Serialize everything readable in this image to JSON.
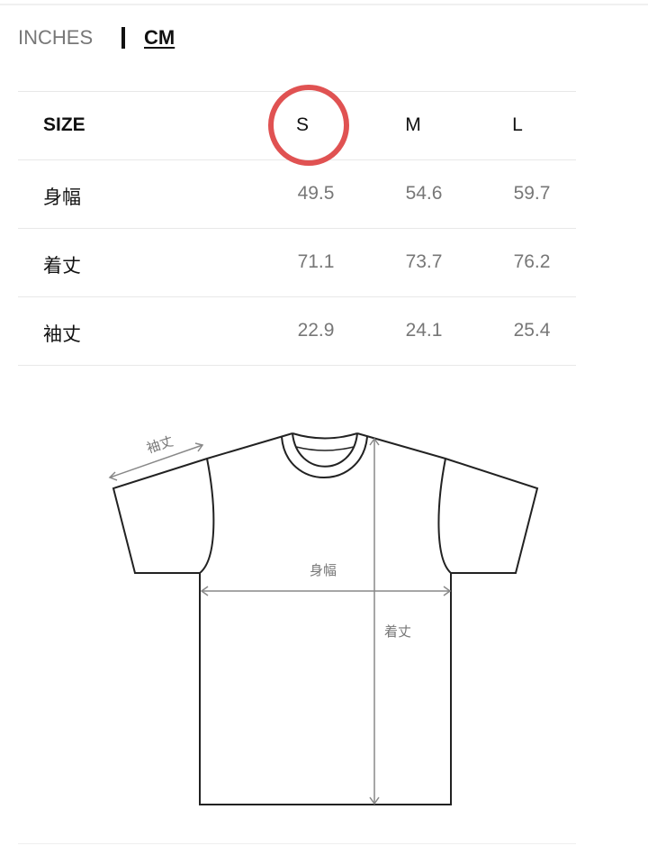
{
  "units": {
    "inches": "INCHES",
    "cm": "CM",
    "selected": "CM"
  },
  "table": {
    "headers": [
      "SIZE",
      "S",
      "M",
      "L"
    ],
    "highlighted_size": "S",
    "highlight_color": "#e05252",
    "rows": [
      {
        "label": "身幅",
        "values": [
          "49.5",
          "54.6",
          "59.7"
        ]
      },
      {
        "label": "着丈",
        "values": [
          "71.1",
          "73.7",
          "76.2"
        ]
      },
      {
        "label": "袖丈",
        "values": [
          "22.9",
          "24.1",
          "25.4"
        ]
      }
    ]
  },
  "diagram": {
    "sleeve": "袖丈",
    "width": "身幅",
    "length": "着丈"
  }
}
